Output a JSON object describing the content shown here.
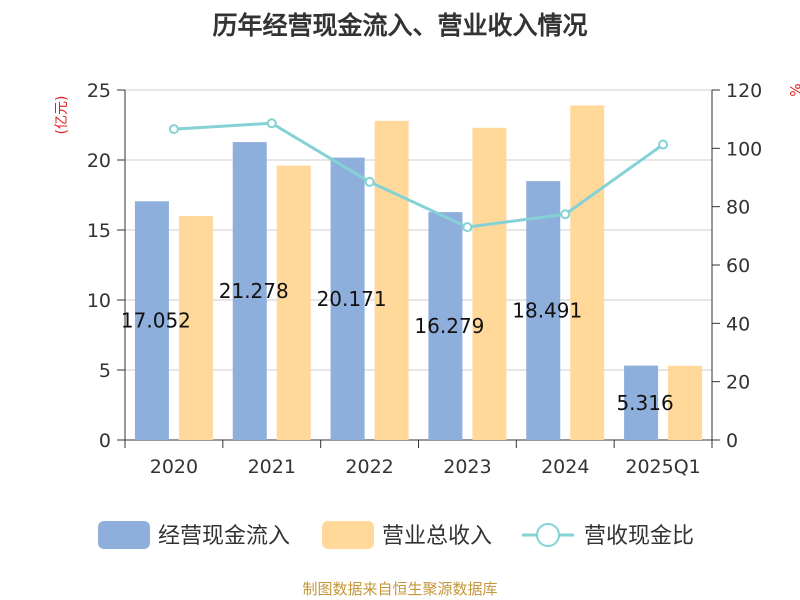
{
  "colors": {
    "cash": "#8eaedc",
    "revenue": "#ffd89a",
    "ratio": "#84d1d6",
    "axis_unit": "#e02020",
    "text": "#333333",
    "source": "#c4973a"
  },
  "chart_data": {
    "type": "bar",
    "title": "历年经营现金流入、营业收入情况",
    "source_note": "制图数据来自恒生聚源数据库",
    "categories": [
      "2020",
      "2021",
      "2022",
      "2023",
      "2024",
      "2025Q1"
    ],
    "y_left": {
      "unit": "(亿元)",
      "range": [
        0,
        25
      ],
      "ticks": [
        "0",
        "5",
        "10",
        "15",
        "20",
        "25"
      ]
    },
    "y_right": {
      "unit": "%",
      "range": [
        0,
        120
      ],
      "ticks": [
        "0",
        "20",
        "40",
        "60",
        "80",
        "100",
        "120"
      ]
    },
    "grid": true,
    "legend_position": "bottom",
    "series": [
      {
        "name": "经营现金流入",
        "type": "bar",
        "axis": "left",
        "values": [
          17.052,
          21.278,
          20.171,
          16.279,
          18.491,
          5.316
        ],
        "labels": [
          "17.052",
          "21.278",
          "20.171",
          "16.279",
          "18.491",
          "5.316"
        ]
      },
      {
        "name": "营业总收入",
        "type": "bar",
        "axis": "left",
        "values": [
          16.0,
          19.6,
          22.8,
          22.3,
          23.9,
          5.3
        ]
      },
      {
        "name": "营收现金比",
        "type": "line",
        "axis": "right",
        "values": [
          106.6,
          108.6,
          88.5,
          73.0,
          77.4,
          101.3
        ]
      }
    ]
  }
}
